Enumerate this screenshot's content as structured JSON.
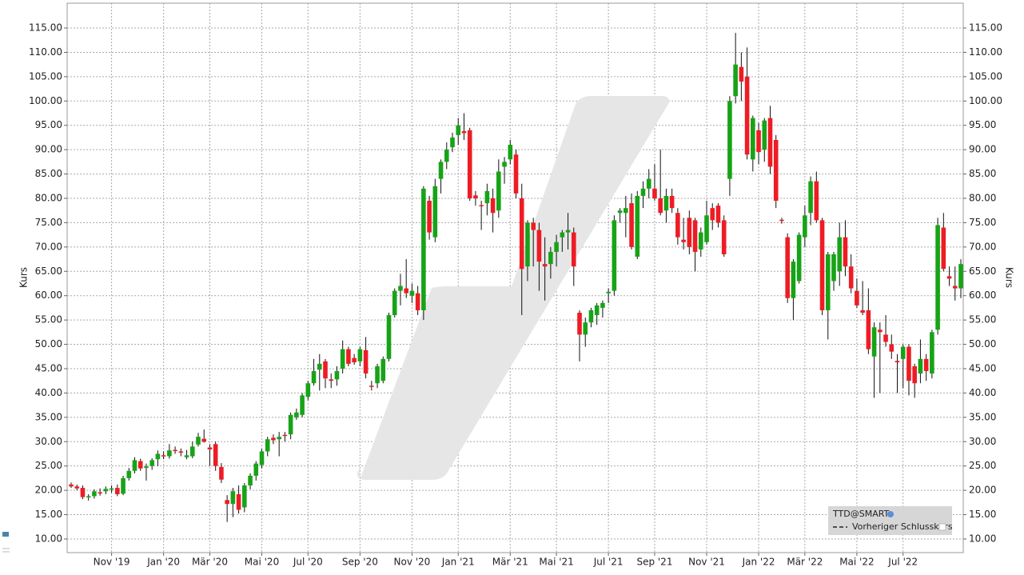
{
  "chart_data": {
    "type": "candlestick",
    "y_label": "Kurs",
    "ylim": [
      7.2,
      120.1
    ],
    "yticks": [
      {
        "value": 10,
        "label": "10.00"
      },
      {
        "value": 15,
        "label": "15.00"
      },
      {
        "value": 20,
        "label": "20.00"
      },
      {
        "value": 25,
        "label": "25.00"
      },
      {
        "value": 30,
        "label": "30.00"
      },
      {
        "value": 35,
        "label": "35.00"
      },
      {
        "value": 40,
        "label": "40.00"
      },
      {
        "value": 45,
        "label": "45.00"
      },
      {
        "value": 50,
        "label": "50.00"
      },
      {
        "value": 55,
        "label": "55.00"
      },
      {
        "value": 60,
        "label": "60.00"
      },
      {
        "value": 65,
        "label": "65.00"
      },
      {
        "value": 70,
        "label": "70.00"
      },
      {
        "value": 75,
        "label": "75.00"
      },
      {
        "value": 80,
        "label": "80.00"
      },
      {
        "value": 85,
        "label": "85.00"
      },
      {
        "value": 90,
        "label": "90.00"
      },
      {
        "value": 95,
        "label": "95.00"
      },
      {
        "value": 100,
        "label": "100.00"
      },
      {
        "value": 105,
        "label": "105.00"
      },
      {
        "value": 110,
        "label": "110.00"
      },
      {
        "value": 115,
        "label": "115.00"
      }
    ],
    "grid": true,
    "legend": [
      "TTD@SMART",
      "Vorheriger Schlusskurs"
    ],
    "categories": [
      null,
      null,
      null,
      null,
      null,
      null,
      null,
      "Nov '19",
      null,
      null,
      null,
      null,
      null,
      null,
      null,
      null,
      "Jan '20",
      null,
      null,
      null,
      null,
      null,
      null,
      null,
      "Mär '20",
      null,
      null,
      null,
      null,
      null,
      null,
      null,
      null,
      "Mai '20",
      null,
      null,
      null,
      null,
      null,
      null,
      null,
      "Jul '20",
      null,
      null,
      null,
      null,
      null,
      null,
      null,
      null,
      "Sep '20",
      null,
      null,
      null,
      null,
      null,
      null,
      null,
      null,
      "Nov '20",
      null,
      null,
      null,
      null,
      null,
      null,
      null,
      "Jan '21",
      null,
      null,
      null,
      null,
      null,
      null,
      null,
      null,
      "Mär '21",
      null,
      null,
      null,
      null,
      null,
      null,
      null,
      "Mai '21",
      null,
      null,
      null,
      null,
      null,
      null,
      null,
      null,
      "Jul '21",
      null,
      null,
      null,
      null,
      null,
      null,
      null,
      "Sep '21",
      null,
      null,
      null,
      null,
      null,
      null,
      null,
      null,
      "Nov '21",
      null,
      null,
      null,
      null,
      null,
      null,
      null,
      null,
      "Jan '22",
      null,
      null,
      null,
      null,
      null,
      null,
      null,
      "Mär '22",
      null,
      null,
      null,
      null,
      null,
      null,
      null,
      null,
      "Mai '22",
      null,
      null,
      null,
      null,
      null,
      null,
      null,
      "Jul '22",
      null,
      null,
      null,
      null,
      null,
      null,
      null,
      null,
      null,
      null
    ],
    "series": [
      {
        "name": "TTD@SMART",
        "up_color": "#17a317",
        "down_color": "#ee1c24",
        "open": [
          21.2,
          20.8,
          20.5,
          18.6,
          18.8,
          19.6,
          19.8,
          20.2,
          20.5,
          19.3,
          22.5,
          24.0,
          26.0,
          24.6,
          25.0,
          26.4,
          27.2,
          27.0,
          28.3,
          28.0,
          26.8,
          27.0,
          29.4,
          30.6,
          28.8,
          29.5,
          24.8,
          18.0,
          17.2,
          19.2,
          16.5,
          21.0,
          23.0,
          25.2,
          28.0,
          30.8,
          30.5,
          31.4,
          31.5,
          35.0,
          35.5,
          39.2,
          42.0,
          44.8,
          46.5,
          42.8,
          42.8,
          45.0,
          49.0,
          47.2,
          46.5,
          48.8,
          41.5,
          42.0,
          42.5,
          47.0,
          56.0,
          61.0,
          61.5,
          60.0,
          60.5,
          57.0,
          79.5,
          72.0,
          84.0,
          87.5,
          90.5,
          93.0,
          93.8,
          94.0,
          80.6,
          78.6,
          79.0,
          80.0,
          77.5,
          86.5,
          88.0,
          89.0,
          80.0,
          66.0,
          75.0,
          73.5,
          66.5,
          66.5,
          69.0,
          72.0,
          73.0,
          73.0,
          56.5,
          52.0,
          54.5,
          56.0,
          57.5,
          60.5,
          61.0,
          77.0,
          77.0,
          79.0,
          68.0,
          80.5,
          82.0,
          82.0,
          80.0,
          77.5,
          80.5,
          77.0,
          71.5,
          76.0,
          75.5,
          69.5,
          71.0,
          78.0,
          78.5,
          75.5,
          84.0,
          101.0,
          107.0,
          105.0,
          88.0,
          94.0,
          90.0,
          96.5,
          92.0,
          75.6,
          72.0,
          59.5,
          63.0,
          72.0,
          77.0,
          83.5,
          75.5,
          57.0,
          63.0,
          65.0,
          72.0,
          66.0,
          61.0,
          57.0,
          57.0,
          47.5,
          53.0,
          52.0,
          50.0,
          46.6,
          47.0,
          49.5,
          45.5,
          44.0,
          47.0,
          44.0,
          53.0,
          74.0,
          64.0,
          62.0,
          61.5
        ],
        "high": [
          21.6,
          21.2,
          21.0,
          19.2,
          20.2,
          20.4,
          20.8,
          21.0,
          21.2,
          23.0,
          24.6,
          26.8,
          26.5,
          25.5,
          26.6,
          28.2,
          28.0,
          29.5,
          29.0,
          28.6,
          28.3,
          30.0,
          31.8,
          32.5,
          29.5,
          30.0,
          25.6,
          19.0,
          20.5,
          21.0,
          21.5,
          23.5,
          26.0,
          28.5,
          31.0,
          31.5,
          32.0,
          32.0,
          36.0,
          36.8,
          40.0,
          42.5,
          47.0,
          48.0,
          47.0,
          44.0,
          45.5,
          50.8,
          49.5,
          48.0,
          49.5,
          51.5,
          42.5,
          46.0,
          47.5,
          56.5,
          61.5,
          64.5,
          67.5,
          62.5,
          62.0,
          82.5,
          80.5,
          84.0,
          88.0,
          91.5,
          93.5,
          96.5,
          97.5,
          94.5,
          81.5,
          79.5,
          83.0,
          82.0,
          88.0,
          88.5,
          92.0,
          90.0,
          83.0,
          75.5,
          76.0,
          75.0,
          72.0,
          70.0,
          72.5,
          73.5,
          77.0,
          74.0,
          57.0,
          55.5,
          57.5,
          58.5,
          59.0,
          61.5,
          76.5,
          78.0,
          80.5,
          81.0,
          81.5,
          83.5,
          86.0,
          87.0,
          90.0,
          82.0,
          82.0,
          78.0,
          76.0,
          77.5,
          76.0,
          74.0,
          79.5,
          79.0,
          79.0,
          76.5,
          101.0,
          114.0,
          110.0,
          111.0,
          97.0,
          95.5,
          96.5,
          99.0,
          93.0,
          76.0,
          72.8,
          67.5,
          73.0,
          78.5,
          84.5,
          85.5,
          76.0,
          69.0,
          69.0,
          75.0,
          75.5,
          68.5,
          63.5,
          63.0,
          61.5,
          54.5,
          54.5,
          56.0,
          52.0,
          48.0,
          50.0,
          50.0,
          46.0,
          51.0,
          48.0,
          53.0,
          76.0,
          77.0,
          66.0,
          66.0,
          67.5
        ],
        "low": [
          20.5,
          20.0,
          18.2,
          17.9,
          18.3,
          18.9,
          19.2,
          19.5,
          18.8,
          19.0,
          22.0,
          23.5,
          24.0,
          22.0,
          24.2,
          25.0,
          26.4,
          26.5,
          27.5,
          27.0,
          26.4,
          26.6,
          29.0,
          29.8,
          25.0,
          24.0,
          21.5,
          13.5,
          14.5,
          15.2,
          15.5,
          20.2,
          22.0,
          24.5,
          27.0,
          29.5,
          27.0,
          30.0,
          30.5,
          34.5,
          35.0,
          38.5,
          41.5,
          40.5,
          41.0,
          41.0,
          41.5,
          44.0,
          45.5,
          45.8,
          45.5,
          43.0,
          40.5,
          41.0,
          42.0,
          46.5,
          55.5,
          58.0,
          59.5,
          58.5,
          56.0,
          55.0,
          71.5,
          71.0,
          81.0,
          86.0,
          89.5,
          91.0,
          92.0,
          79.5,
          78.5,
          73.5,
          76.5,
          73.0,
          76.0,
          83.0,
          87.0,
          80.0,
          56.0,
          63.0,
          66.0,
          61.0,
          59.0,
          63.5,
          66.0,
          69.0,
          69.5,
          62.0,
          46.5,
          49.5,
          53.5,
          54.0,
          55.5,
          58.5,
          60.0,
          75.0,
          72.0,
          69.5,
          67.5,
          78.0,
          80.0,
          79.5,
          76.5,
          75.0,
          77.0,
          70.5,
          69.5,
          68.5,
          65.0,
          68.0,
          70.5,
          73.5,
          74.0,
          68.0,
          80.5,
          99.5,
          100.0,
          88.0,
          85.5,
          87.0,
          87.5,
          85.0,
          78.0,
          74.8,
          58.5,
          55.0,
          62.5,
          70.0,
          74.5,
          75.0,
          56.0,
          51.0,
          61.0,
          62.0,
          64.0,
          60.5,
          57.5,
          56.0,
          48.0,
          39.0,
          40.0,
          49.5,
          47.0,
          40.0,
          41.0,
          39.5,
          39.0,
          42.0,
          42.5,
          43.0,
          52.0,
          65.0,
          62.0,
          59.0,
          59.5
        ],
        "close": [
          20.8,
          20.4,
          18.6,
          18.8,
          19.8,
          19.4,
          20.3,
          20.4,
          19.2,
          22.5,
          24.0,
          26.2,
          24.5,
          24.9,
          26.2,
          27.5,
          27.0,
          28.2,
          28.1,
          27.8,
          27.2,
          29.0,
          31.0,
          30.0,
          28.4,
          25.0,
          22.2,
          17.2,
          19.8,
          16.0,
          21.0,
          23.0,
          25.5,
          28.0,
          30.5,
          30.3,
          31.0,
          31.2,
          35.5,
          36.0,
          39.5,
          42.0,
          44.5,
          46.0,
          43.0,
          42.5,
          44.5,
          49.0,
          46.0,
          46.3,
          49.0,
          44.0,
          41.4,
          45.5,
          47.0,
          56.0,
          61.0,
          62.0,
          60.5,
          61.0,
          57.0,
          82.0,
          73.0,
          82.5,
          87.5,
          90.0,
          92.5,
          95.0,
          93.4,
          80.0,
          80.0,
          78.4,
          81.5,
          77.0,
          85.5,
          87.5,
          91.0,
          81.0,
          65.5,
          75.0,
          73.5,
          67.0,
          66.0,
          69.0,
          71.0,
          73.0,
          73.5,
          66.0,
          52.0,
          54.5,
          57.0,
          58.0,
          58.5,
          60.8,
          75.5,
          77.5,
          78.0,
          70.0,
          80.5,
          82.0,
          84.0,
          80.0,
          77.0,
          80.5,
          78.0,
          72.0,
          71.0,
          70.0,
          69.0,
          73.0,
          76.5,
          75.5,
          75.0,
          68.5,
          100.0,
          107.5,
          104.0,
          89.0,
          96.5,
          89.5,
          96.0,
          86.5,
          79.5,
          75.4,
          59.5,
          67.0,
          72.5,
          76.5,
          83.5,
          75.5,
          57.0,
          68.5,
          68.5,
          72.0,
          66.0,
          61.5,
          58.0,
          56.5,
          49.0,
          53.5,
          52.5,
          50.5,
          48.5,
          46.3,
          49.5,
          42.5,
          42.0,
          47.0,
          44.5,
          52.5,
          74.5,
          65.5,
          63.5,
          61.5,
          66.5
        ]
      }
    ]
  }
}
